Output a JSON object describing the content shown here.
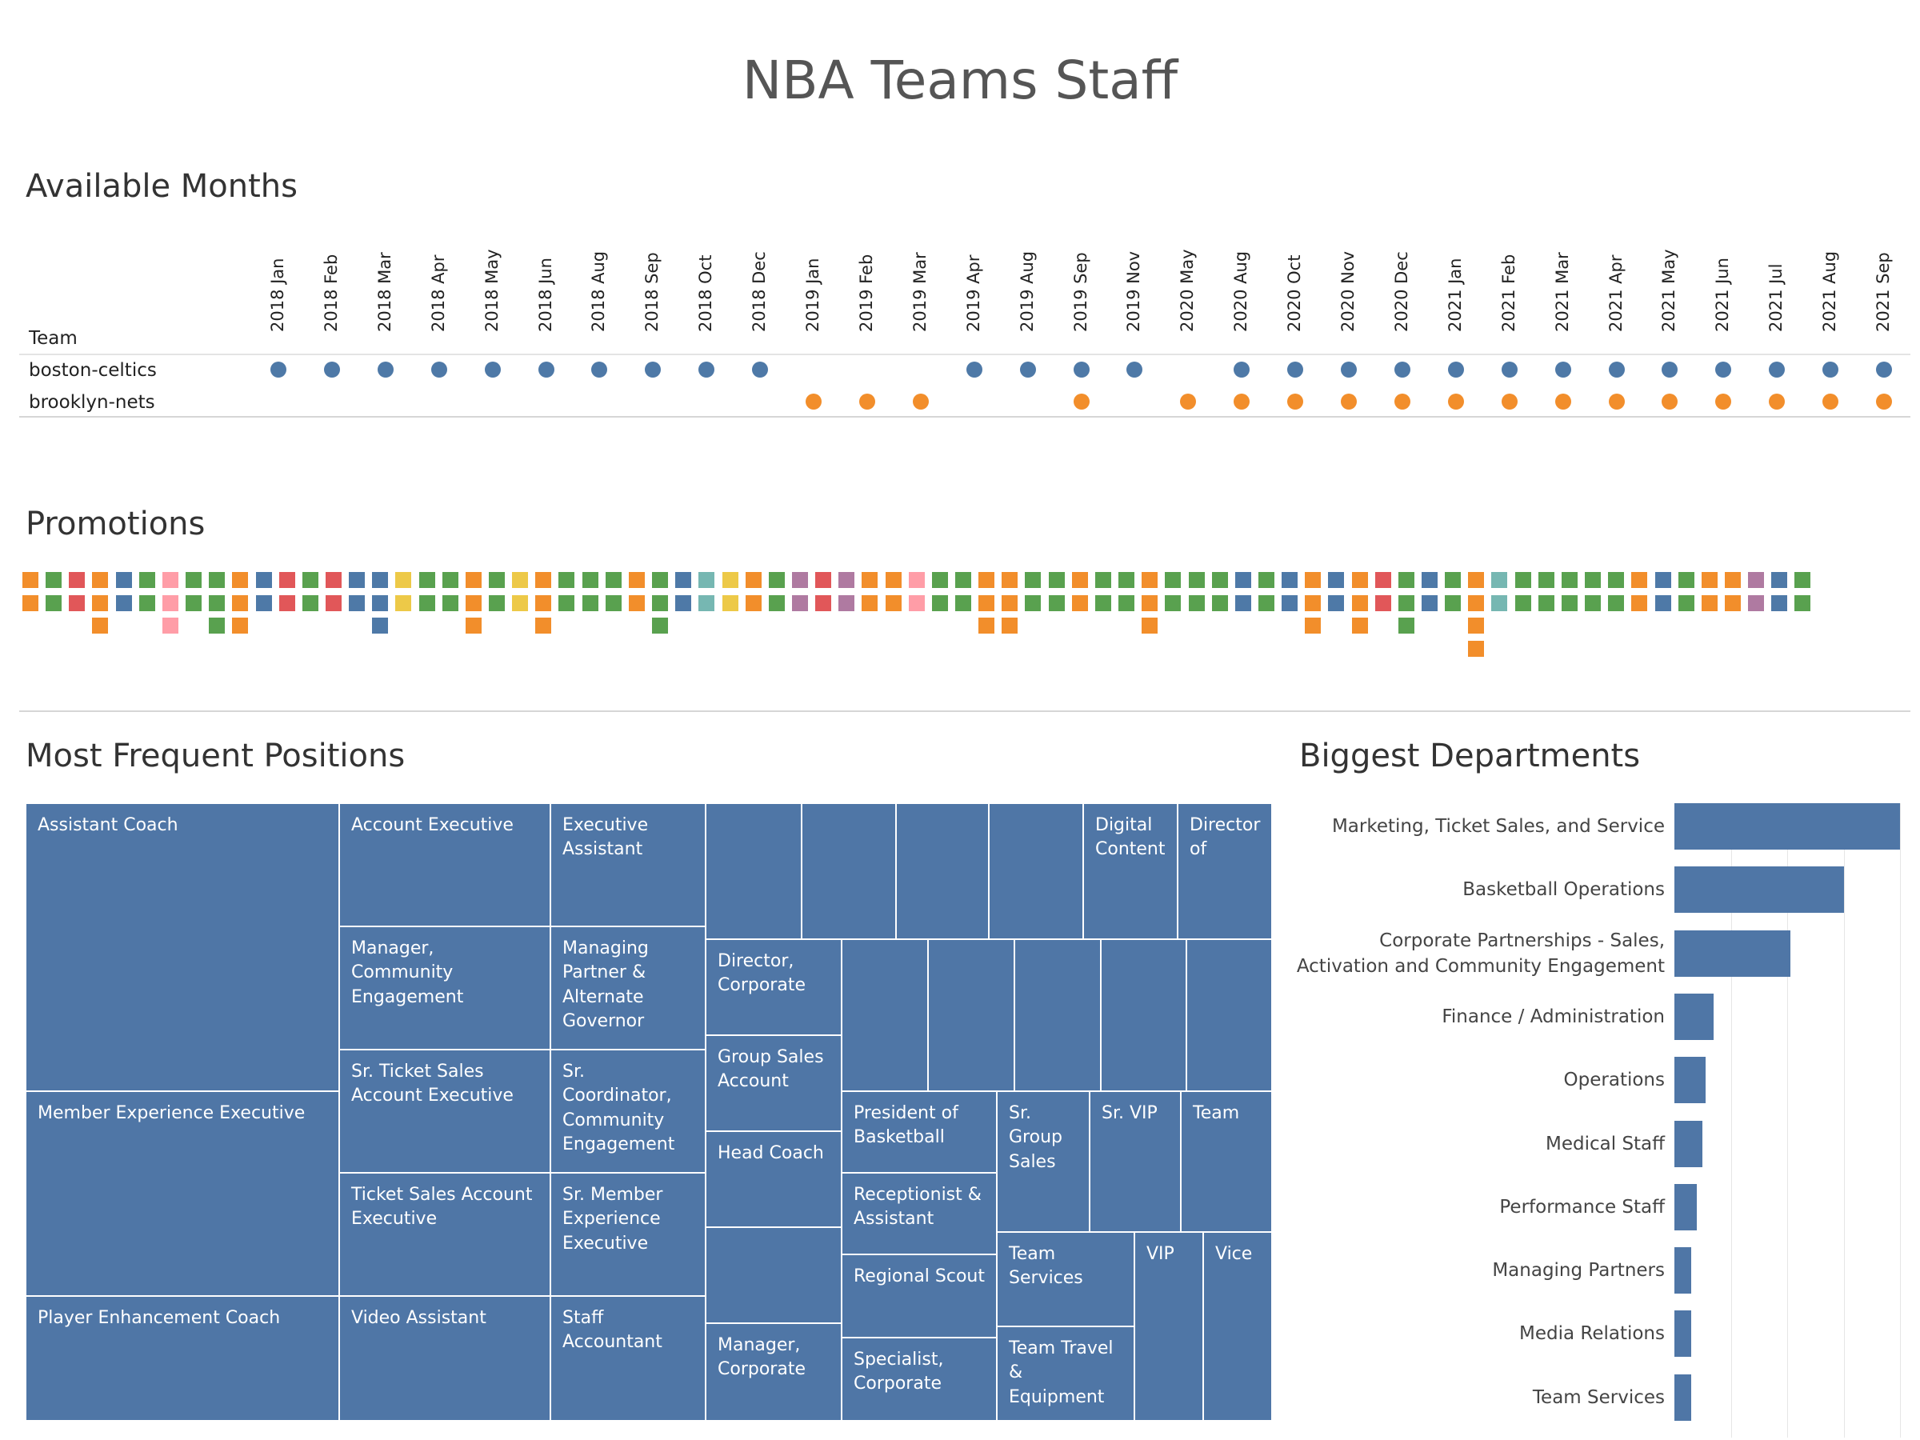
{
  "title": "NBA Teams Staff",
  "months_section": {
    "title": "Available Months",
    "team_header": "Team",
    "months": [
      "2018 Jan",
      "2018 Feb",
      "2018 Mar",
      "2018 Apr",
      "2018 May",
      "2018 Jun",
      "2018 Aug",
      "2018 Sep",
      "2018 Oct",
      "2018 Dec",
      "2019 Jan",
      "2019 Feb",
      "2019 Mar",
      "2019 Apr",
      "2019 Aug",
      "2019 Sep",
      "2019 Nov",
      "2020 May",
      "2020 Aug",
      "2020 Oct",
      "2020 Nov",
      "2020 Dec",
      "2021 Jan",
      "2021 Feb",
      "2021 Mar",
      "2021 Apr",
      "2021 May",
      "2021 Jun",
      "2021 Jul",
      "2021 Aug",
      "2021 Sep"
    ],
    "teams": [
      {
        "name": "boston-celtics",
        "color": "#4e79a7",
        "present": [
          1,
          1,
          1,
          1,
          1,
          1,
          1,
          1,
          1,
          1,
          0,
          0,
          0,
          1,
          1,
          1,
          1,
          0,
          1,
          1,
          1,
          1,
          1,
          1,
          1,
          1,
          1,
          1,
          1,
          1,
          1
        ]
      },
      {
        "name": "brooklyn-nets",
        "color": "#f28e2b",
        "present": [
          0,
          0,
          0,
          0,
          0,
          0,
          0,
          0,
          0,
          0,
          1,
          1,
          1,
          0,
          0,
          1,
          0,
          1,
          1,
          1,
          1,
          1,
          1,
          1,
          1,
          1,
          1,
          1,
          1,
          1,
          1
        ]
      }
    ]
  },
  "promotions": {
    "title": "Promotions",
    "palette": {
      "O": "#f28e2b",
      "G": "#59a14f",
      "B": "#4e79a7",
      "R": "#e15759",
      "Y": "#edc948",
      "P": "#ff9da7",
      "T": "#76b7b2",
      "U": "#af7aa1"
    },
    "columns": [
      "OO",
      "GG",
      "RR",
      "OOO",
      "BB",
      "GG",
      "PPP",
      "GG",
      "GGG",
      "OOO",
      "BB",
      "RR",
      "GG",
      "RR",
      "BB",
      "BBB",
      "YY",
      "GG",
      "GG",
      "OOO",
      "GG",
      "YY",
      "OOO",
      "GG",
      "GG",
      "GG",
      "OO",
      "GGG",
      "BB",
      "TT",
      "YY",
      "OO",
      "GG",
      "UU",
      "RR",
      "UU",
      "OO",
      "OO",
      "PP",
      "GG",
      "GG",
      "OOO",
      "OOO",
      "GG",
      "GG",
      "OO",
      "GG",
      "GG",
      "OOO",
      "GG",
      "GG",
      "GG",
      "BB",
      "GG",
      "BB",
      "OOO",
      "BB",
      "OOO",
      "RR",
      "GGG",
      "BB",
      "GG",
      "OOOO",
      "TT",
      "GG",
      "GG",
      "GG",
      "GG",
      "GG",
      "OO",
      "BB",
      "GG",
      "OO",
      "OO",
      "UU",
      "BB",
      "GG"
    ]
  },
  "positions": {
    "title": "Most Frequent Positions",
    "tiles": [
      "Assistant Coach",
      "Member Experience Executive",
      "Player Enhancement Coach",
      "Account Executive",
      "Manager, Community Engagement",
      "Sr. Ticket Sales Account Executive",
      "Ticket Sales Account Executive",
      "Video Assistant",
      "Executive Assistant",
      "Managing Partner & Alternate Governor",
      "Sr. Coordinator, Community Engagement",
      "Sr. Member Experience Executive",
      "Staff Accountant",
      "Digital Content",
      "Director of",
      "Director, Corporate",
      "Group Sales Account",
      "Head Coach",
      "Manager, Corporate",
      "President of Basketball",
      "Receptionist & Assistant",
      "Regional Scout",
      "Specialist, Corporate",
      "Sr. Group Sales",
      "Sr. VIP",
      "Team",
      "Team Services",
      "Team Travel & Equipment",
      "VIP",
      "Vice"
    ]
  },
  "chart_data": {
    "type": "bar",
    "title": "Biggest Departments",
    "orientation": "horizontal",
    "categories": [
      "Marketing, Ticket Sales, and Service",
      "Basketball Operations",
      "Corporate Partnerships - Sales, Activation and Community Engagement",
      "Finance / Administration",
      "Operations",
      "Medical Staff",
      "Performance Staff",
      "Managing Partners",
      "Media Relations",
      "Team Services"
    ],
    "category_lines": [
      [
        "Marketing, Ticket Sales, and Service"
      ],
      [
        "Basketball Operations"
      ],
      [
        "Corporate Partnerships - Sales,",
        "Activation and Community Engagement"
      ],
      [
        "Finance / Administration"
      ],
      [
        "Operations"
      ],
      [
        "Medical Staff"
      ],
      [
        "Performance Staff"
      ],
      [
        "Managing Partners"
      ],
      [
        "Media Relations"
      ],
      [
        "Team Services"
      ]
    ],
    "values": [
      40,
      30,
      20.5,
      7,
      5.5,
      5,
      4,
      3,
      3,
      3
    ],
    "xlim": [
      0,
      40
    ],
    "gridlines": [
      10,
      20,
      30,
      40
    ],
    "bar_color": "#4f76a6"
  }
}
